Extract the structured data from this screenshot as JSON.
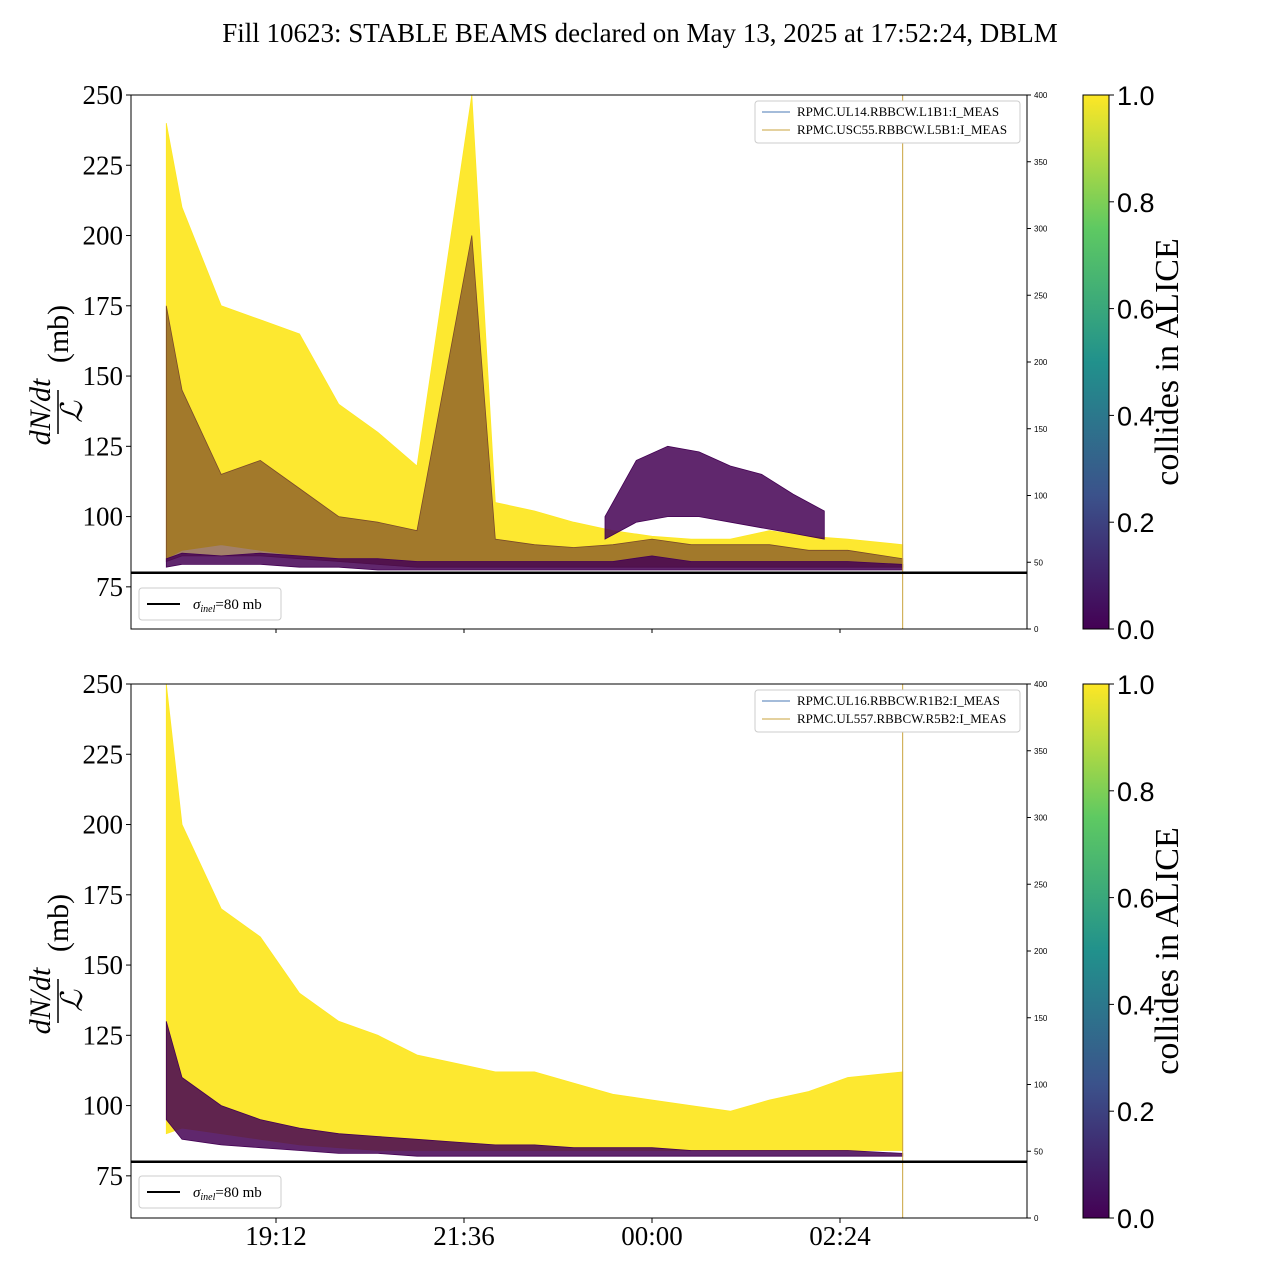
{
  "title": "Fill 10623: STABLE BEAMS declared on May 13, 2025 at 17:52:24, DBLM",
  "colors": {
    "yellow": "#fde725",
    "dark": "#440154",
    "brown": "#7a4a2a",
    "legend_line_1": "#4a78b6",
    "legend_line_2": "#c9a33d",
    "sigma_line": "#000000",
    "colormap": [
      "#440154",
      "#3b528b",
      "#21918c",
      "#5ec962",
      "#fde725"
    ]
  },
  "chart_data": [
    {
      "type": "line",
      "ylabel_numerator": "dN/dt",
      "ylabel_denominator": "ℒ",
      "ylabel_unit": "(mb)",
      "ylim": [
        60,
        250
      ],
      "yticks": [
        "75",
        "100",
        "125",
        "150",
        "175",
        "200",
        "225",
        "250"
      ],
      "right_ylim": [
        0,
        400
      ],
      "right_yticks": [
        "0",
        "50",
        "100",
        "150",
        "200",
        "250",
        "300",
        "350",
        "400"
      ],
      "legend": [
        "RPMC.UL14.RBBCW.L1B1:I_MEAS",
        "RPMC.USC55.RBBCW.L5B1:I_MEAS"
      ],
      "hline": {
        "value": 80,
        "label": "σinel=80 mb",
        "label_main": "σ",
        "label_sub": "inel",
        "label_rest": "=80 mb"
      },
      "colorbar": {
        "label": "collides in ALICE",
        "ticks": [
          "0.0",
          "0.2",
          "0.4",
          "0.6",
          "0.8",
          "1.0"
        ]
      },
      "series": [
        {
          "color": "yellow",
          "x": [
            0.8,
            1.0,
            1.5,
            2.0,
            2.5,
            3.0,
            3.5,
            4.0,
            4.7,
            5.0,
            5.5,
            6.0,
            6.5,
            7.0,
            7.5,
            8.0,
            8.5,
            9.0,
            9.5,
            10.2
          ],
          "upper": [
            240,
            210,
            175,
            170,
            165,
            140,
            130,
            118,
            250,
            105,
            102,
            98,
            95,
            93,
            92,
            92,
            95,
            93,
            92,
            90
          ],
          "lower": [
            85,
            88,
            90,
            88,
            86,
            84,
            83,
            82,
            82,
            82,
            82,
            82,
            82,
            82,
            82,
            82,
            82,
            82,
            82,
            82
          ]
        },
        {
          "color": "brown",
          "x": [
            0.8,
            1.0,
            1.5,
            2.0,
            2.5,
            3.0,
            3.5,
            4.0,
            4.7,
            5.0,
            5.5,
            6.0,
            6.5,
            7.0,
            7.5,
            8.0,
            8.5,
            9.0,
            9.5,
            10.2
          ],
          "upper": [
            175,
            145,
            115,
            120,
            110,
            100,
            98,
            95,
            200,
            92,
            90,
            89,
            90,
            92,
            90,
            90,
            90,
            88,
            88,
            85
          ],
          "lower": [
            84,
            86,
            86,
            86,
            85,
            84,
            83,
            82,
            82,
            82,
            82,
            82,
            82,
            82,
            82,
            82,
            82,
            82,
            82,
            82
          ]
        },
        {
          "color": "dark",
          "x": [
            0.8,
            1.0,
            1.5,
            2.0,
            2.5,
            3.0,
            3.5,
            4.0,
            4.7,
            5.0,
            5.5,
            6.0,
            6.5,
            7.0,
            7.5,
            8.0,
            8.5,
            9.0,
            9.5,
            10.2
          ],
          "upper": [
            85,
            87,
            86,
            87,
            86,
            85,
            85,
            84,
            84,
            84,
            84,
            84,
            84,
            86,
            84,
            84,
            84,
            84,
            84,
            83
          ],
          "lower": [
            82,
            83,
            83,
            83,
            82,
            82,
            81,
            81,
            81,
            81,
            81,
            81,
            81,
            81,
            81,
            81,
            81,
            81,
            81,
            81
          ]
        },
        {
          "color": "dark",
          "x": [
            6.4,
            6.8,
            7.2,
            7.6,
            8.0,
            8.4,
            8.8,
            9.2
          ],
          "upper": [
            100,
            120,
            125,
            123,
            118,
            115,
            108,
            102
          ],
          "lower": [
            92,
            98,
            100,
            100,
            98,
            96,
            94,
            92
          ]
        }
      ]
    },
    {
      "type": "line",
      "ylabel_numerator": "dN/dt",
      "ylabel_denominator": "ℒ",
      "ylabel_unit": "(mb)",
      "ylim": [
        60,
        250
      ],
      "yticks": [
        "75",
        "100",
        "125",
        "150",
        "175",
        "200",
        "225",
        "250"
      ],
      "right_ylim": [
        0,
        400
      ],
      "right_yticks": [
        "0",
        "50",
        "100",
        "150",
        "200",
        "250",
        "300",
        "350",
        "400"
      ],
      "legend": [
        "RPMC.UL16.RBBCW.R1B2:I_MEAS",
        "RPMC.UL557.RBBCW.R5B2:I_MEAS"
      ],
      "hline": {
        "value": 80,
        "label": "σinel=80 mb",
        "label_main": "σ",
        "label_sub": "inel",
        "label_rest": "=80 mb"
      },
      "colorbar": {
        "label": "collides in ALICE",
        "ticks": [
          "0.0",
          "0.2",
          "0.4",
          "0.6",
          "0.8",
          "1.0"
        ]
      },
      "xticks": [
        "19:12",
        "21:36",
        "00:00",
        "02:24"
      ],
      "series": [
        {
          "color": "yellow",
          "x": [
            0.8,
            1.0,
            1.5,
            2.0,
            2.5,
            3.0,
            3.5,
            4.0,
            4.5,
            5.0,
            5.5,
            6.0,
            6.5,
            7.0,
            7.5,
            8.0,
            8.5,
            9.0,
            9.5,
            10.2
          ],
          "upper": [
            250,
            200,
            170,
            160,
            140,
            130,
            125,
            118,
            115,
            112,
            112,
            108,
            104,
            102,
            100,
            98,
            102,
            105,
            110,
            112
          ],
          "lower": [
            90,
            92,
            90,
            88,
            86,
            85,
            84,
            84,
            84,
            84,
            84,
            84,
            84,
            84,
            84,
            84,
            84,
            84,
            84,
            84
          ]
        },
        {
          "color": "dark",
          "x": [
            0.8,
            1.0,
            1.5,
            2.0,
            2.5,
            3.0,
            3.5,
            4.0,
            4.5,
            5.0,
            5.5,
            6.0,
            6.5,
            7.0,
            7.5,
            8.0,
            8.5,
            9.0,
            9.5,
            10.2
          ],
          "upper": [
            130,
            110,
            100,
            95,
            92,
            90,
            89,
            88,
            87,
            86,
            86,
            85,
            85,
            85,
            84,
            84,
            84,
            84,
            84,
            83
          ],
          "lower": [
            95,
            88,
            86,
            85,
            84,
            83,
            83,
            82,
            82,
            82,
            82,
            82,
            82,
            82,
            82,
            82,
            82,
            82,
            82,
            82
          ]
        }
      ]
    }
  ]
}
